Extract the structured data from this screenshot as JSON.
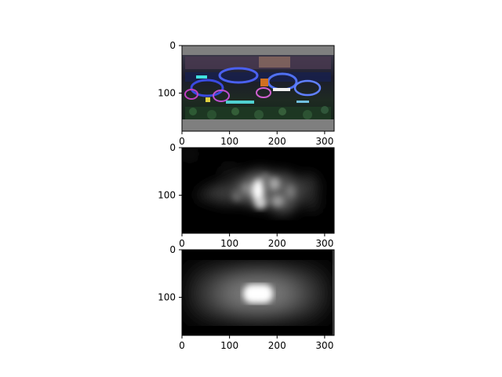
{
  "chart_data": [
    {
      "type": "image",
      "content": "color scene image with gray padding bands",
      "xlim": [
        0,
        320
      ],
      "ylim": [
        180,
        0
      ],
      "xticks": [
        "0",
        "100",
        "200",
        "300"
      ],
      "yticks": [
        "0",
        "100"
      ],
      "title": "",
      "xlabel": "",
      "ylabel": ""
    },
    {
      "type": "heatmap",
      "content": "grayscale saliency map with blotchy highlights",
      "colormap": "gray",
      "xlim": [
        0,
        320
      ],
      "ylim": [
        180,
        0
      ],
      "xticks": [
        "0",
        "100",
        "200",
        "300"
      ],
      "yticks": [
        "0",
        "100"
      ],
      "title": "",
      "xlabel": "",
      "ylabel": ""
    },
    {
      "type": "heatmap",
      "content": "grayscale smooth saliency map with bright center blob",
      "colormap": "gray",
      "xlim": [
        0,
        320
      ],
      "ylim": [
        180,
        0
      ],
      "xticks": [
        "0",
        "100",
        "200",
        "300"
      ],
      "yticks": [
        "0",
        "100"
      ],
      "title": "",
      "xlabel": "",
      "ylabel": ""
    }
  ]
}
